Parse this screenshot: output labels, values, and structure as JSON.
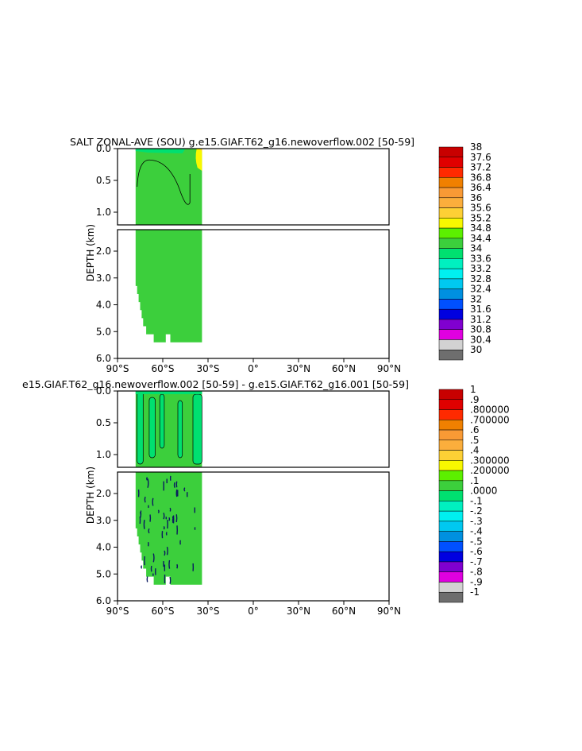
{
  "chart_data": [
    {
      "type": "heatmap",
      "title": "SALT ZONAL-AVE (SOU) g.e15.GIAF.T62_g16.newoverflow.002 [50-59]",
      "ylabel": "DEPTH (km)",
      "xticks": [
        "90°S",
        "60°S",
        "30°S",
        "0°",
        "30°N",
        "60°N",
        "90°N"
      ],
      "xlim": [
        -90,
        90
      ],
      "upper_panel": {
        "ylim": [
          0,
          1.2
        ],
        "yticks": [
          "0.0",
          "0.5",
          "1.0"
        ]
      },
      "lower_panel": {
        "ylim": [
          1.2,
          6.0
        ],
        "yticks": [
          "2.0",
          "3.0",
          "4.0",
          "5.0",
          "6.0"
        ]
      },
      "colorbar": {
        "labels": [
          "38",
          "37.6",
          "37.2",
          "36.8",
          "36.4",
          "36",
          "35.6",
          "35.2",
          "34.8",
          "34.4",
          "34",
          "33.6",
          "33.2",
          "32.8",
          "32.4",
          "32",
          "31.6",
          "31.2",
          "30.8",
          "30.4",
          "30"
        ],
        "colors": [
          "#c80000",
          "#e00000",
          "#ff2a00",
          "#f08000",
          "#f99a35",
          "#fbae3c",
          "#fdd035",
          "#f8f800",
          "#5cf000",
          "#3ccf3c",
          "#00e070",
          "#00f0c0",
          "#00f0f0",
          "#00c8f0",
          "#0090e0",
          "#0050ff",
          "#0000e0",
          "#8000d0",
          "#e000e0",
          "#d2d2d2",
          "#6e6e6e"
        ]
      },
      "data_extent": {
        "lat_min": -78,
        "lat_max": -34,
        "max_depth": 5.4
      },
      "dominant_value": 34.2,
      "features": [
        {
          "desc": "surface salinity max",
          "lat": [
            -37,
            -34
          ],
          "depth": [
            0,
            0.35
          ],
          "value": 35.0
        },
        {
          "desc": "fresh surface water",
          "lat": [
            -78,
            -45
          ],
          "depth": [
            0,
            0.05
          ],
          "value": 33.8
        }
      ]
    },
    {
      "type": "heatmap",
      "title": "e15.GIAF.T62_g16.newoverflow.002 [50-59] - g.e15.GIAF.T62_g16.001 [50-59]",
      "ylabel": "DEPTH (km)",
      "xticks": [
        "90°S",
        "60°S",
        "30°S",
        "0°",
        "30°N",
        "60°N",
        "90°N"
      ],
      "xlim": [
        -90,
        90
      ],
      "upper_panel": {
        "ylim": [
          0,
          1.2
        ],
        "yticks": [
          "0.0",
          "0.5",
          "1.0"
        ]
      },
      "lower_panel": {
        "ylim": [
          1.2,
          6.0
        ],
        "yticks": [
          "2.0",
          "3.0",
          "4.0",
          "5.0",
          "6.0"
        ]
      },
      "colorbar": {
        "labels": [
          "1",
          ".9",
          ".800000",
          ".700000",
          ".6",
          ".5",
          ".4",
          ".300000",
          ".200000",
          ".1",
          ".0000",
          "-.1",
          "-.2",
          "-.3",
          "-.4",
          "-.5",
          "-.6",
          "-.7",
          "-.8",
          "-.9",
          "-1"
        ],
        "colors": [
          "#c80000",
          "#e00000",
          "#ff2a00",
          "#f08000",
          "#f99a35",
          "#fbae3c",
          "#fdd035",
          "#f8f800",
          "#5cf000",
          "#3ccf3c",
          "#00e070",
          "#00f0c0",
          "#00f0f0",
          "#00c8f0",
          "#0090e0",
          "#0050ff",
          "#0000e0",
          "#8000d0",
          "#e000e0",
          "#d2d2d2",
          "#6e6e6e"
        ]
      },
      "data_extent": {
        "lat_min": -78,
        "lat_max": -34,
        "max_depth": 5.4
      },
      "dominant_value": 0.05
    }
  ]
}
